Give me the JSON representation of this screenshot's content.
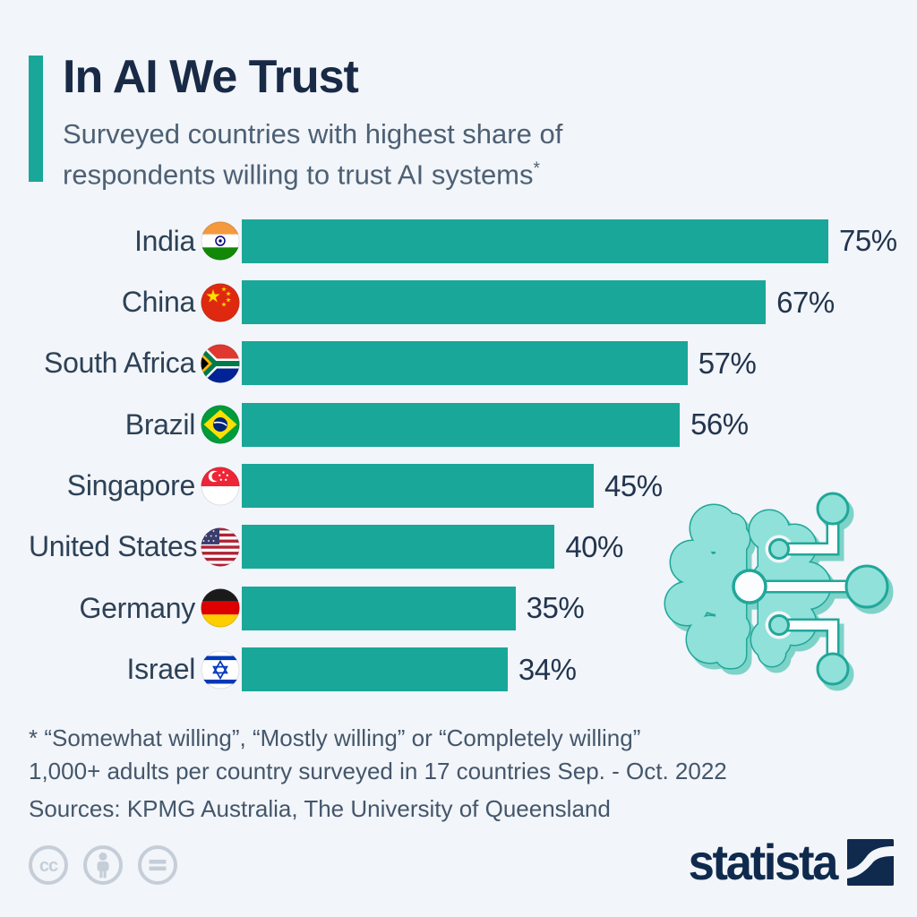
{
  "page": {
    "background": "#f2f5f9"
  },
  "header": {
    "title": "In AI We Trust",
    "subtitle_line1": "Surveyed countries with highest share of",
    "subtitle_line2": "respondents willing to trust AI systems",
    "footnote_marker": "*",
    "accent_color": "#19a79a",
    "title_color": "#182a46"
  },
  "chart_data": {
    "type": "bar",
    "orientation": "horizontal",
    "title": "In AI We Trust",
    "subtitle": "Surveyed countries with highest share of respondents willing to trust AI systems*",
    "categories": [
      "India",
      "China",
      "South Africa",
      "Brazil",
      "Singapore",
      "United States",
      "Germany",
      "Israel"
    ],
    "values": [
      75,
      67,
      57,
      56,
      45,
      40,
      35,
      34
    ],
    "value_labels": [
      "75%",
      "67%",
      "57%",
      "56%",
      "45%",
      "40%",
      "35%",
      "34%"
    ],
    "unit": "%",
    "xlim": [
      0,
      75
    ],
    "bar_color": "#19a79a",
    "grid": false,
    "legend": false,
    "flag_icons": [
      "india-flag",
      "china-flag",
      "south-africa-flag",
      "brazil-flag",
      "singapore-flag",
      "united-states-flag",
      "germany-flag",
      "israel-flag"
    ]
  },
  "footnotes": {
    "line1": "* “Somewhat willing”, “Mostly willing” or “Completely willing”",
    "line2": "1,000+ adults per country surveyed in 17 countries Sep. - Oct. 2022",
    "line3": "Sources: KPMG Australia, The University of Queensland"
  },
  "footer": {
    "license_icons": [
      "cc-icon",
      "attribution-icon",
      "no-derivatives-icon"
    ],
    "brand": "statista",
    "brand_color": "#0f2a4d"
  },
  "illustration": {
    "name": "ai-brain-circuit",
    "fill": "#90e1d9",
    "stroke": "#20a79a"
  }
}
